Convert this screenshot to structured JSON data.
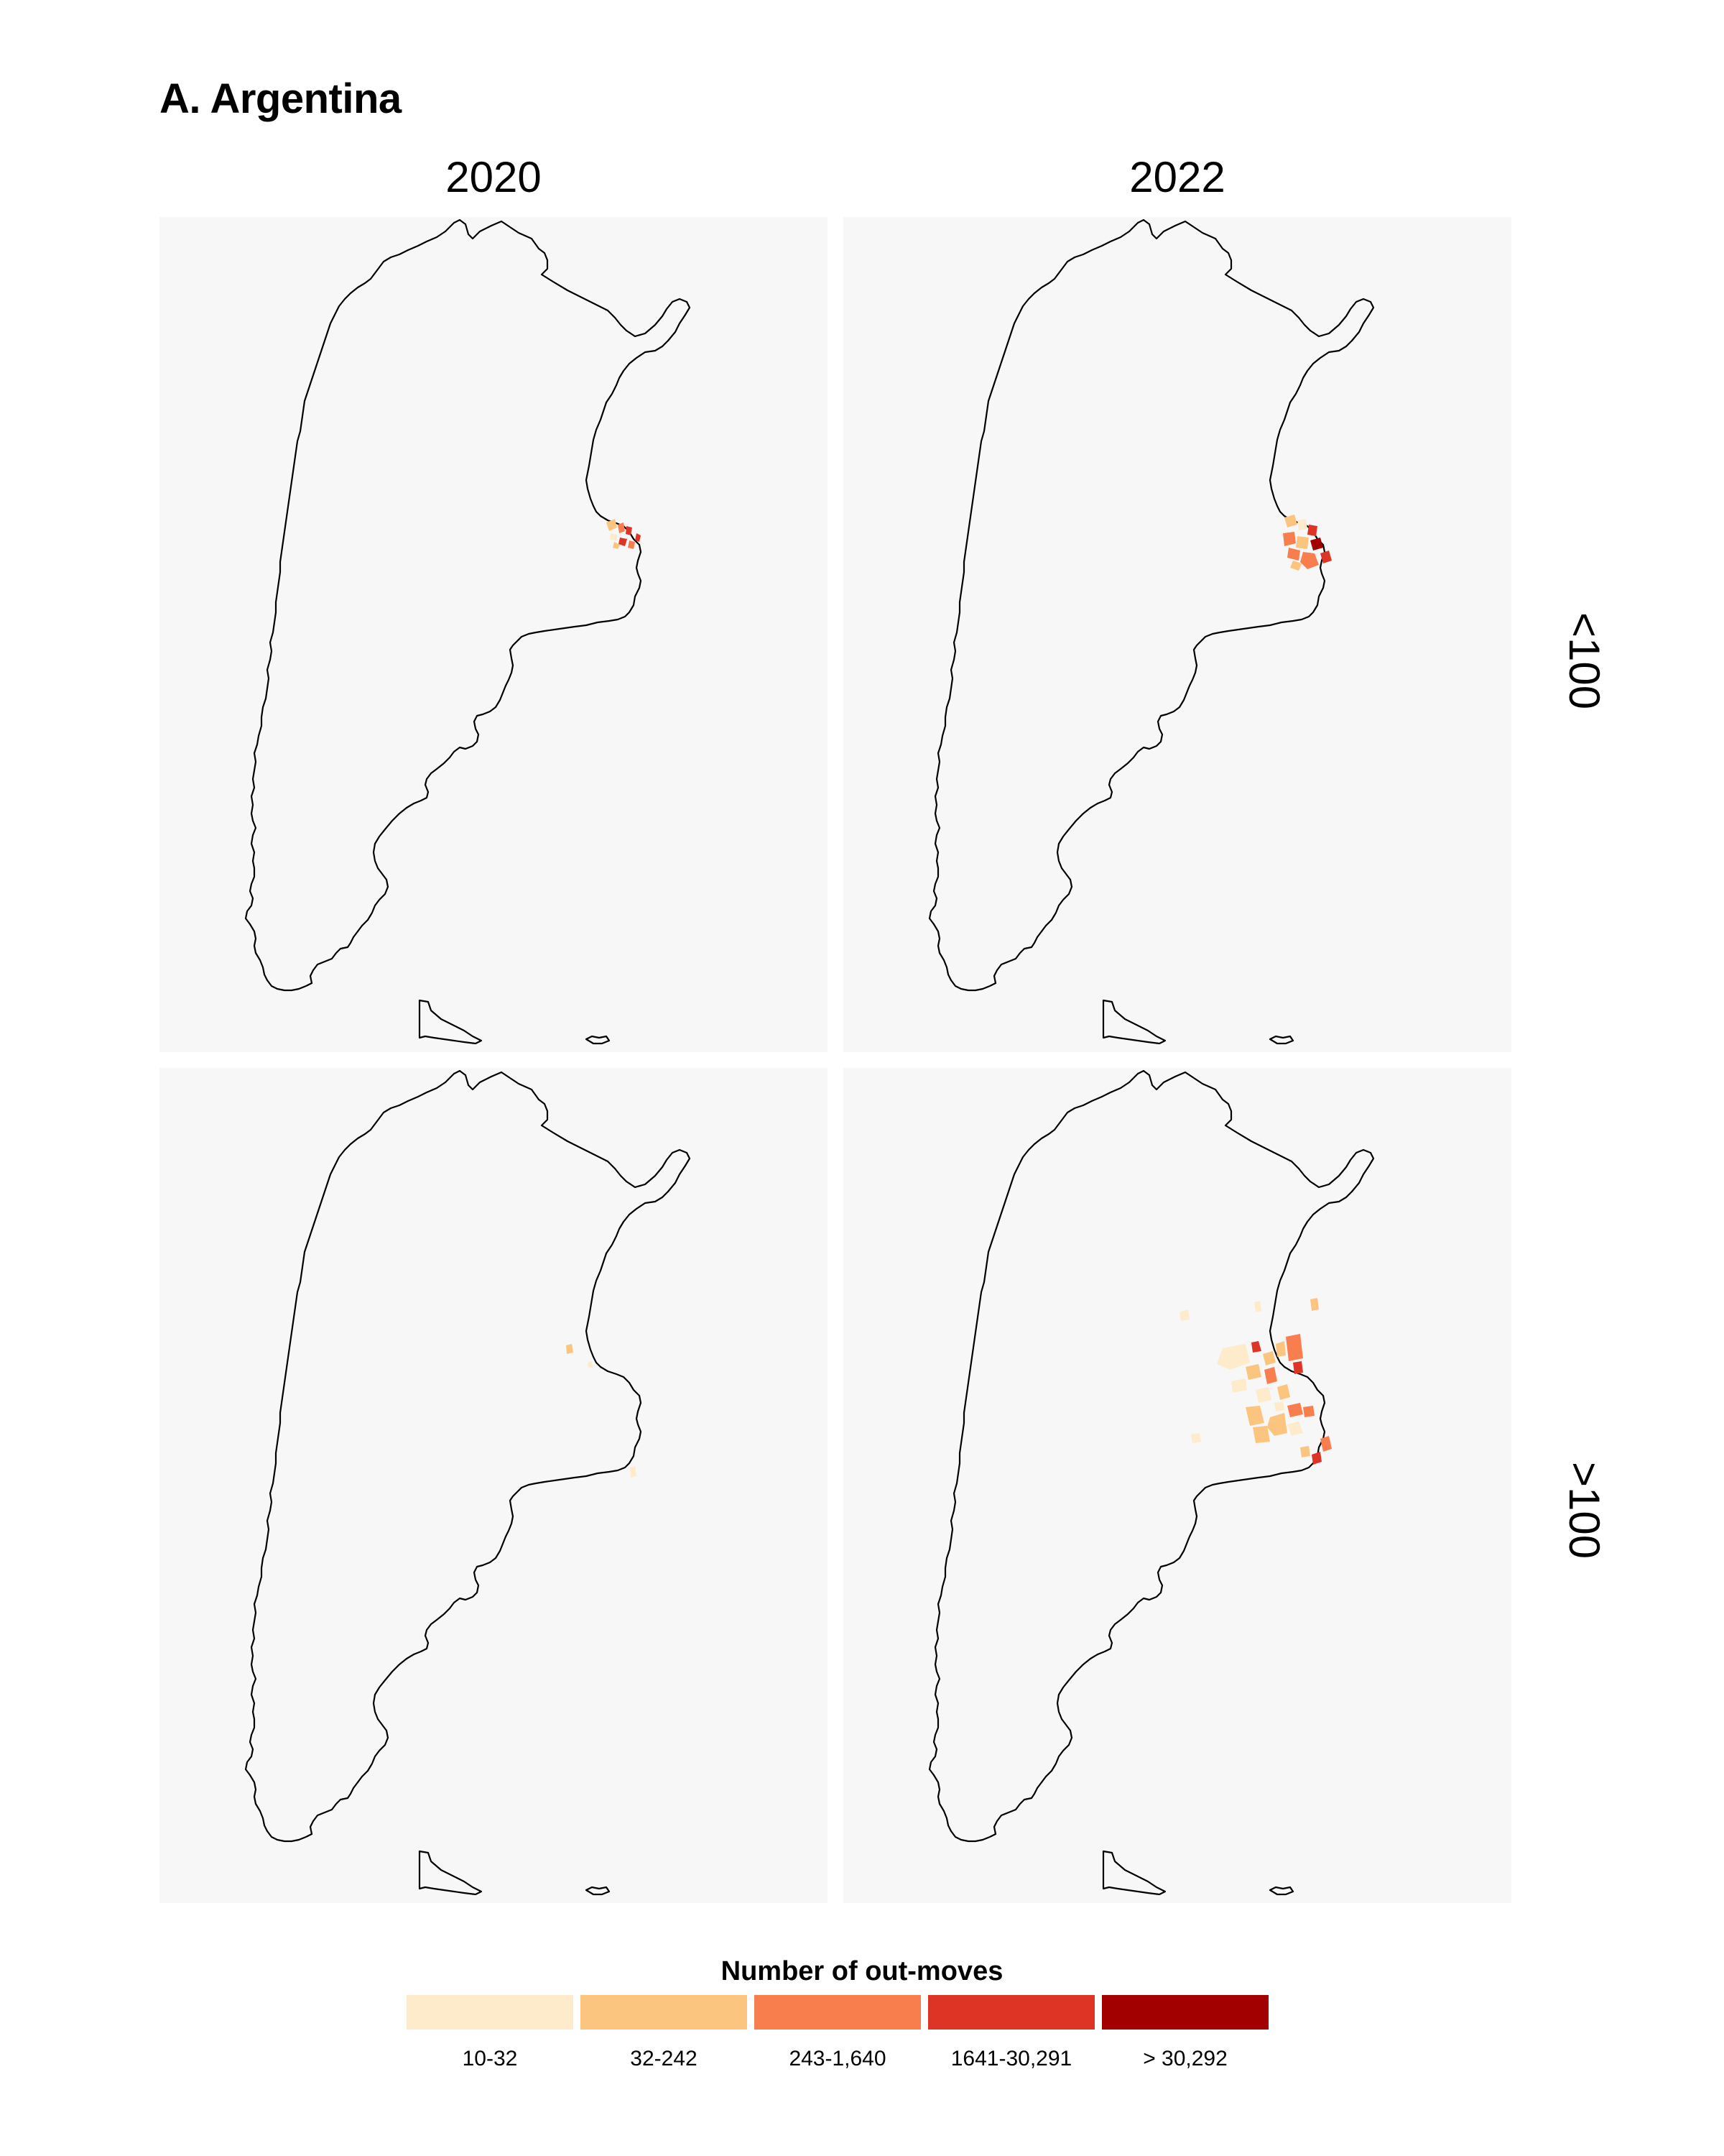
{
  "title": "A. Argentina",
  "columns": [
    "2020",
    "2022"
  ],
  "rows": [
    "<100",
    ">100"
  ],
  "legend": {
    "title": "Number of out-moves",
    "classes": [
      {
        "label": "10-32",
        "color": "#fdebcc"
      },
      {
        "label": "32-242",
        "color": "#fbc47f"
      },
      {
        "label": "243-1,640",
        "color": "#f97e4e"
      },
      {
        "label": "1641-30,291",
        "color": "#de3426"
      },
      {
        "label": "> 30,292",
        "color": "#a20000"
      }
    ]
  },
  "colors": {
    "panel_background": "#f7f7f7",
    "outline": "#000000"
  }
}
